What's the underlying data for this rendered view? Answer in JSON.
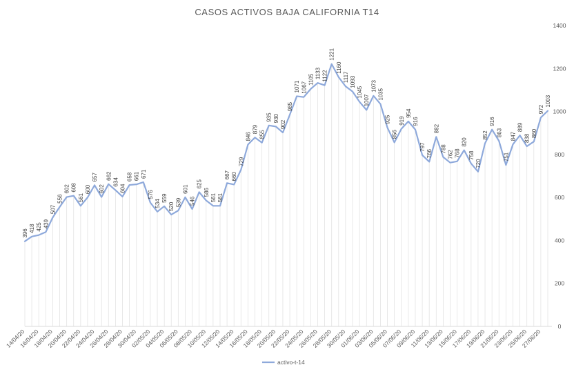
{
  "chart_data": {
    "type": "line",
    "title": "CASOS  ACTIVOS BAJA CALIFORNIA  T14",
    "xlabel": "",
    "ylabel": "",
    "ylim": [
      0,
      1400
    ],
    "yticks": [
      0,
      200,
      400,
      600,
      800,
      1000,
      1200,
      1400
    ],
    "y_axis_position": "right",
    "grid": "vertical drop lines",
    "legend_position": "bottom",
    "line_color": "#8ea9db",
    "x": [
      "14/04/20",
      "15/04/20",
      "16/04/20",
      "17/04/20",
      "18/04/20",
      "19/04/20",
      "20/04/20",
      "21/04/20",
      "22/04/20",
      "23/04/20",
      "24/04/20",
      "25/04/20",
      "26/04/20",
      "27/04/20",
      "28/04/20",
      "29/04/20",
      "30/04/20",
      "01/05/20",
      "02/05/20",
      "03/05/20",
      "04/05/20",
      "05/05/20",
      "06/05/20",
      "07/05/20",
      "08/05/20",
      "09/05/20",
      "10/05/20",
      "11/05/20",
      "12/05/20",
      "13/05/20",
      "14/05/20",
      "15/05/20",
      "16/05/20",
      "17/05/20",
      "18/05/20",
      "19/05/20",
      "20/05/20",
      "21/05/20",
      "22/05/20",
      "23/05/20",
      "24/05/20",
      "25/05/20",
      "26/05/20",
      "27/05/20",
      "28/05/20",
      "29/05/20",
      "30/05/20",
      "31/05/20",
      "01/06/20",
      "02/06/20",
      "03/06/20",
      "04/06/20",
      "05/06/20",
      "06/06/20",
      "07/06/20",
      "08/06/20",
      "09/06/20",
      "10/06/20",
      "11/06/20",
      "12/06/20",
      "13/06/20",
      "14/06/20",
      "15/06/20",
      "16/06/20",
      "17/06/20",
      "18/06/20",
      "19/06/20",
      "20/06/20",
      "21/06/20",
      "22/06/20",
      "23/06/20",
      "24/06/20",
      "25/06/20",
      "26/06/20",
      "27/06/20",
      "28/06/20"
    ],
    "xtick_labels": [
      "14/04/20",
      "16/04/20",
      "18/04/20",
      "20/04/20",
      "22/04/20",
      "24/04/20",
      "26/04/20",
      "28/04/20",
      "30/04/20",
      "02/05/20",
      "04/05/20",
      "06/05/20",
      "08/05/20",
      "10/05/20",
      "12/05/20",
      "14/05/20",
      "16/05/20",
      "18/05/20",
      "20/05/20",
      "22/05/20",
      "24/05/20",
      "26/05/20",
      "28/05/20",
      "30/05/20",
      "01/06/20",
      "03/06/20",
      "05/06/20",
      "07/06/20",
      "09/06/20",
      "11/06/20",
      "13/06/20",
      "15/06/20",
      "17/06/20",
      "19/06/20",
      "21/06/20",
      "23/06/20",
      "25/06/20",
      "27/06/20"
    ],
    "series": [
      {
        "name": "activo-t-14",
        "values": [
          396,
          418,
          425,
          439,
          507,
          556,
          602,
          608,
          561,
          600,
          657,
          602,
          662,
          634,
          604,
          658,
          661,
          671,
          576,
          534,
          559,
          520,
          539,
          601,
          546,
          625,
          586,
          561,
          561,
          667,
          660,
          729,
          846,
          879,
          855,
          935,
          930,
          902,
          985,
          1071,
          1067,
          1105,
          1133,
          1122,
          1221,
          1160,
          1117,
          1093,
          1045,
          1007,
          1073,
          1035,
          925,
          856,
          919,
          954,
          916,
          797,
          766,
          882,
          788,
          762,
          768,
          820,
          758,
          720,
          852,
          916,
          863,
          751,
          847,
          889,
          838,
          860,
          972,
          1003
        ]
      }
    ]
  }
}
